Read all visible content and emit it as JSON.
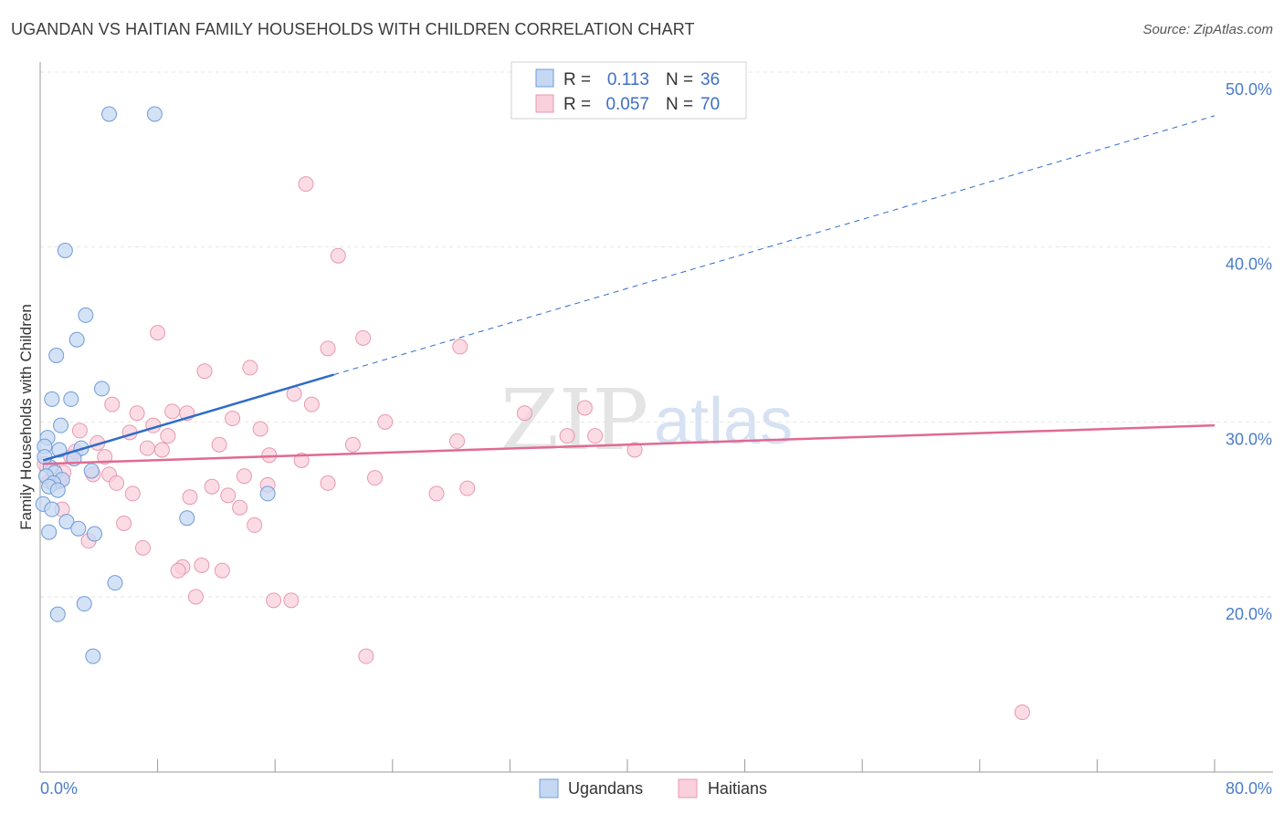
{
  "header": {
    "title": "UGANDAN VS HAITIAN FAMILY HOUSEHOLDS WITH CHILDREN CORRELATION CHART",
    "source": "Source: ZipAtlas.com"
  },
  "watermark": {
    "zip": "ZIP",
    "atlas": "atlas"
  },
  "legend": {
    "r_label": "R =",
    "n_label": "N =",
    "ugandans": {
      "r": "0.113",
      "n": "36"
    },
    "haitians": {
      "r": "0.057",
      "n": "70"
    }
  },
  "chart_data": {
    "type": "scatter",
    "title": "UGANDAN VS HAITIAN FAMILY HOUSEHOLDS WITH CHILDREN CORRELATION CHART",
    "xlabel": "",
    "ylabel": "Family Households with Children",
    "xlim": [
      0,
      80
    ],
    "ylim": [
      10,
      52
    ],
    "x_tick_labels": [
      "0.0%",
      "80.0%"
    ],
    "y_ticks": [
      20,
      30,
      40,
      50
    ],
    "y_tick_labels": [
      "20.0%",
      "30.0%",
      "40.0%",
      "50.0%"
    ],
    "grid": true,
    "colors": {
      "ugandans_fill": "#c5d8f3",
      "ugandans_stroke": "#6f9bd8",
      "ugandans_line": "#2f6cc7",
      "haitians_fill": "#f9d0dc",
      "haitians_stroke": "#e898b0",
      "haitians_line": "#e06a92",
      "tick_text": "#4a7cc9"
    },
    "series": [
      {
        "name": "Ugandans",
        "r": 0.113,
        "n": 36,
        "trend": {
          "solid": [
            [
              0.2,
              27.8
            ],
            [
              20,
              32.7
            ]
          ],
          "dashed": [
            [
              20,
              32.7
            ],
            [
              80,
              47.5
            ]
          ]
        },
        "points": [
          [
            4.7,
            47.6
          ],
          [
            7.8,
            47.6
          ],
          [
            1.7,
            39.8
          ],
          [
            3.1,
            36.1
          ],
          [
            2.5,
            34.7
          ],
          [
            1.1,
            33.8
          ],
          [
            4.2,
            31.9
          ],
          [
            0.8,
            31.3
          ],
          [
            2.1,
            31.3
          ],
          [
            1.4,
            29.8
          ],
          [
            0.5,
            29.1
          ],
          [
            0.3,
            28.6
          ],
          [
            1.3,
            28.4
          ],
          [
            2.8,
            28.5
          ],
          [
            2.3,
            27.9
          ],
          [
            0.7,
            27.4
          ],
          [
            3.5,
            27.2
          ],
          [
            1.0,
            27.1
          ],
          [
            1.5,
            26.7
          ],
          [
            0.4,
            26.9
          ],
          [
            0.9,
            26.5
          ],
          [
            0.6,
            26.3
          ],
          [
            1.2,
            26.1
          ],
          [
            15.5,
            25.9
          ],
          [
            0.2,
            25.3
          ],
          [
            0.8,
            25.0
          ],
          [
            1.8,
            24.3
          ],
          [
            10.0,
            24.5
          ],
          [
            2.6,
            23.9
          ],
          [
            0.6,
            23.7
          ],
          [
            3.7,
            23.6
          ],
          [
            5.1,
            20.8
          ],
          [
            3.0,
            19.6
          ],
          [
            1.2,
            19.0
          ],
          [
            3.6,
            16.6
          ],
          [
            0.3,
            28.0
          ]
        ]
      },
      {
        "name": "Haitians",
        "r": 0.057,
        "n": 70,
        "trend": {
          "solid": [
            [
              0.2,
              27.6
            ],
            [
              80,
              29.8
            ]
          ]
        },
        "points": [
          [
            18.1,
            43.6
          ],
          [
            20.3,
            39.5
          ],
          [
            22.0,
            34.8
          ],
          [
            19.6,
            34.2
          ],
          [
            28.6,
            34.3
          ],
          [
            8.0,
            35.1
          ],
          [
            14.3,
            33.1
          ],
          [
            11.2,
            32.9
          ],
          [
            17.3,
            31.6
          ],
          [
            18.5,
            31.0
          ],
          [
            4.9,
            31.0
          ],
          [
            33.0,
            30.5
          ],
          [
            37.1,
            30.8
          ],
          [
            6.6,
            30.5
          ],
          [
            9.0,
            30.6
          ],
          [
            10.0,
            30.5
          ],
          [
            13.1,
            30.2
          ],
          [
            7.7,
            29.8
          ],
          [
            15.0,
            29.6
          ],
          [
            2.7,
            29.5
          ],
          [
            6.1,
            29.4
          ],
          [
            8.7,
            29.2
          ],
          [
            35.9,
            29.2
          ],
          [
            37.8,
            29.2
          ],
          [
            28.4,
            28.9
          ],
          [
            21.3,
            28.7
          ],
          [
            12.2,
            28.7
          ],
          [
            3.9,
            28.8
          ],
          [
            7.3,
            28.5
          ],
          [
            8.3,
            28.4
          ],
          [
            40.5,
            28.4
          ],
          [
            15.6,
            28.1
          ],
          [
            2.1,
            28.0
          ],
          [
            4.4,
            28.0
          ],
          [
            17.8,
            27.8
          ],
          [
            0.3,
            27.6
          ],
          [
            0.9,
            27.3
          ],
          [
            1.6,
            27.1
          ],
          [
            3.6,
            27.0
          ],
          [
            4.7,
            27.0
          ],
          [
            13.9,
            26.9
          ],
          [
            22.8,
            26.8
          ],
          [
            1.3,
            26.6
          ],
          [
            5.2,
            26.5
          ],
          [
            19.6,
            26.5
          ],
          [
            15.5,
            26.4
          ],
          [
            11.7,
            26.3
          ],
          [
            29.1,
            26.2
          ],
          [
            27.0,
            25.9
          ],
          [
            6.3,
            25.9
          ],
          [
            12.8,
            25.8
          ],
          [
            10.2,
            25.7
          ],
          [
            13.6,
            25.1
          ],
          [
            1.5,
            25.0
          ],
          [
            5.7,
            24.2
          ],
          [
            14.6,
            24.1
          ],
          [
            3.3,
            23.2
          ],
          [
            7.0,
            22.8
          ],
          [
            9.7,
            21.7
          ],
          [
            11.0,
            21.8
          ],
          [
            9.4,
            21.5
          ],
          [
            12.4,
            21.5
          ],
          [
            10.6,
            20.0
          ],
          [
            15.9,
            19.8
          ],
          [
            17.1,
            19.8
          ],
          [
            22.2,
            16.6
          ],
          [
            66.9,
            13.4
          ],
          [
            0.6,
            26.6
          ],
          [
            2.4,
            28.3
          ],
          [
            23.5,
            30.0
          ]
        ]
      }
    ]
  },
  "bottom_legend": {
    "ugandans": "Ugandans",
    "haitians": "Haitians"
  }
}
